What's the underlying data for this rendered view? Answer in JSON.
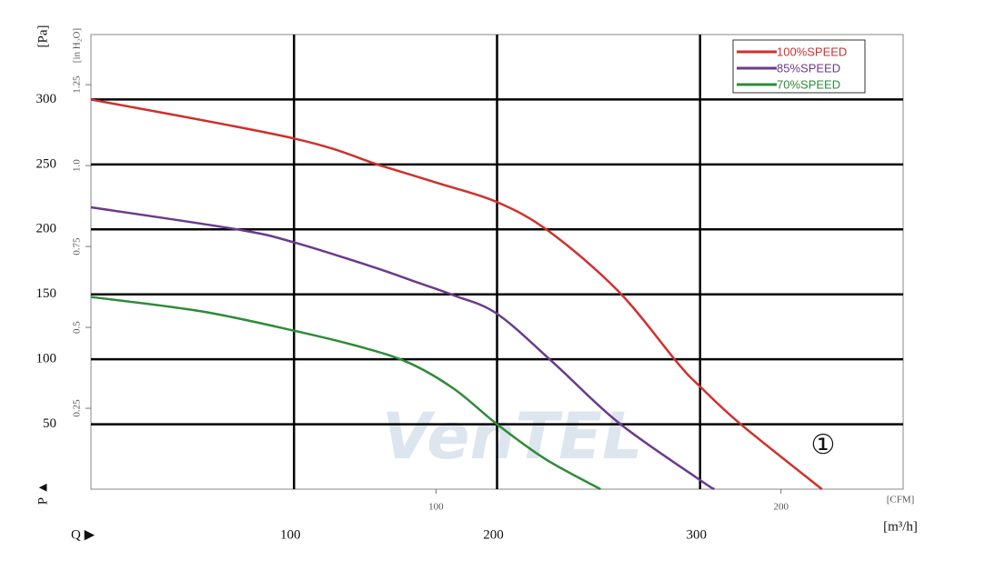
{
  "chart_data": {
    "type": "line",
    "y_label": "[Pa]",
    "y2_label": "[in H₂O]",
    "x_label": "[m³/h]",
    "x2_label": "[CFM]",
    "p_marker": "P ▲",
    "q_marker": "Q ▶",
    "annotation": "①",
    "watermark": "VenTEL",
    "xlim": [
      0,
      400
    ],
    "xticks": [
      100,
      200,
      300
    ],
    "ylim": [
      0,
      350
    ],
    "yticks": [
      50,
      100,
      150,
      200,
      250,
      300
    ],
    "x2lim": [
      0,
      235.4
    ],
    "x2ticks": [
      100,
      200
    ],
    "y2lim": [
      0,
      1.405
    ],
    "y2ticks": [
      0.25,
      0.5,
      0.75,
      {
        "value": 1,
        "label": "1.0"
      },
      1.25
    ],
    "grid": true,
    "legend": "top-right",
    "series": [
      {
        "name": "100%SPEED",
        "color": "#d0302c",
        "x": [
          0,
          100,
          143,
          170,
          200,
          226,
          260,
          289,
          300,
          320,
          360
        ],
        "values": [
          300,
          270,
          249,
          236,
          221,
          198,
          152,
          97,
          79,
          50,
          0
        ]
      },
      {
        "name": "85%SPEED",
        "color": "#6b3a8c",
        "x": [
          0,
          72,
          100,
          139,
          161,
          179,
          200,
          228,
          260,
          300,
          307
        ],
        "values": [
          217,
          200,
          190,
          171,
          159,
          149,
          135,
          97,
          51,
          7,
          0
        ]
      },
      {
        "name": "70%SPEED",
        "color": "#2e8b3a",
        "x": [
          0,
          54,
          100,
          134,
          157,
          179,
          200,
          224,
          251
        ],
        "values": [
          148,
          137,
          122,
          109,
          97,
          77,
          50,
          23,
          0
        ]
      }
    ]
  }
}
